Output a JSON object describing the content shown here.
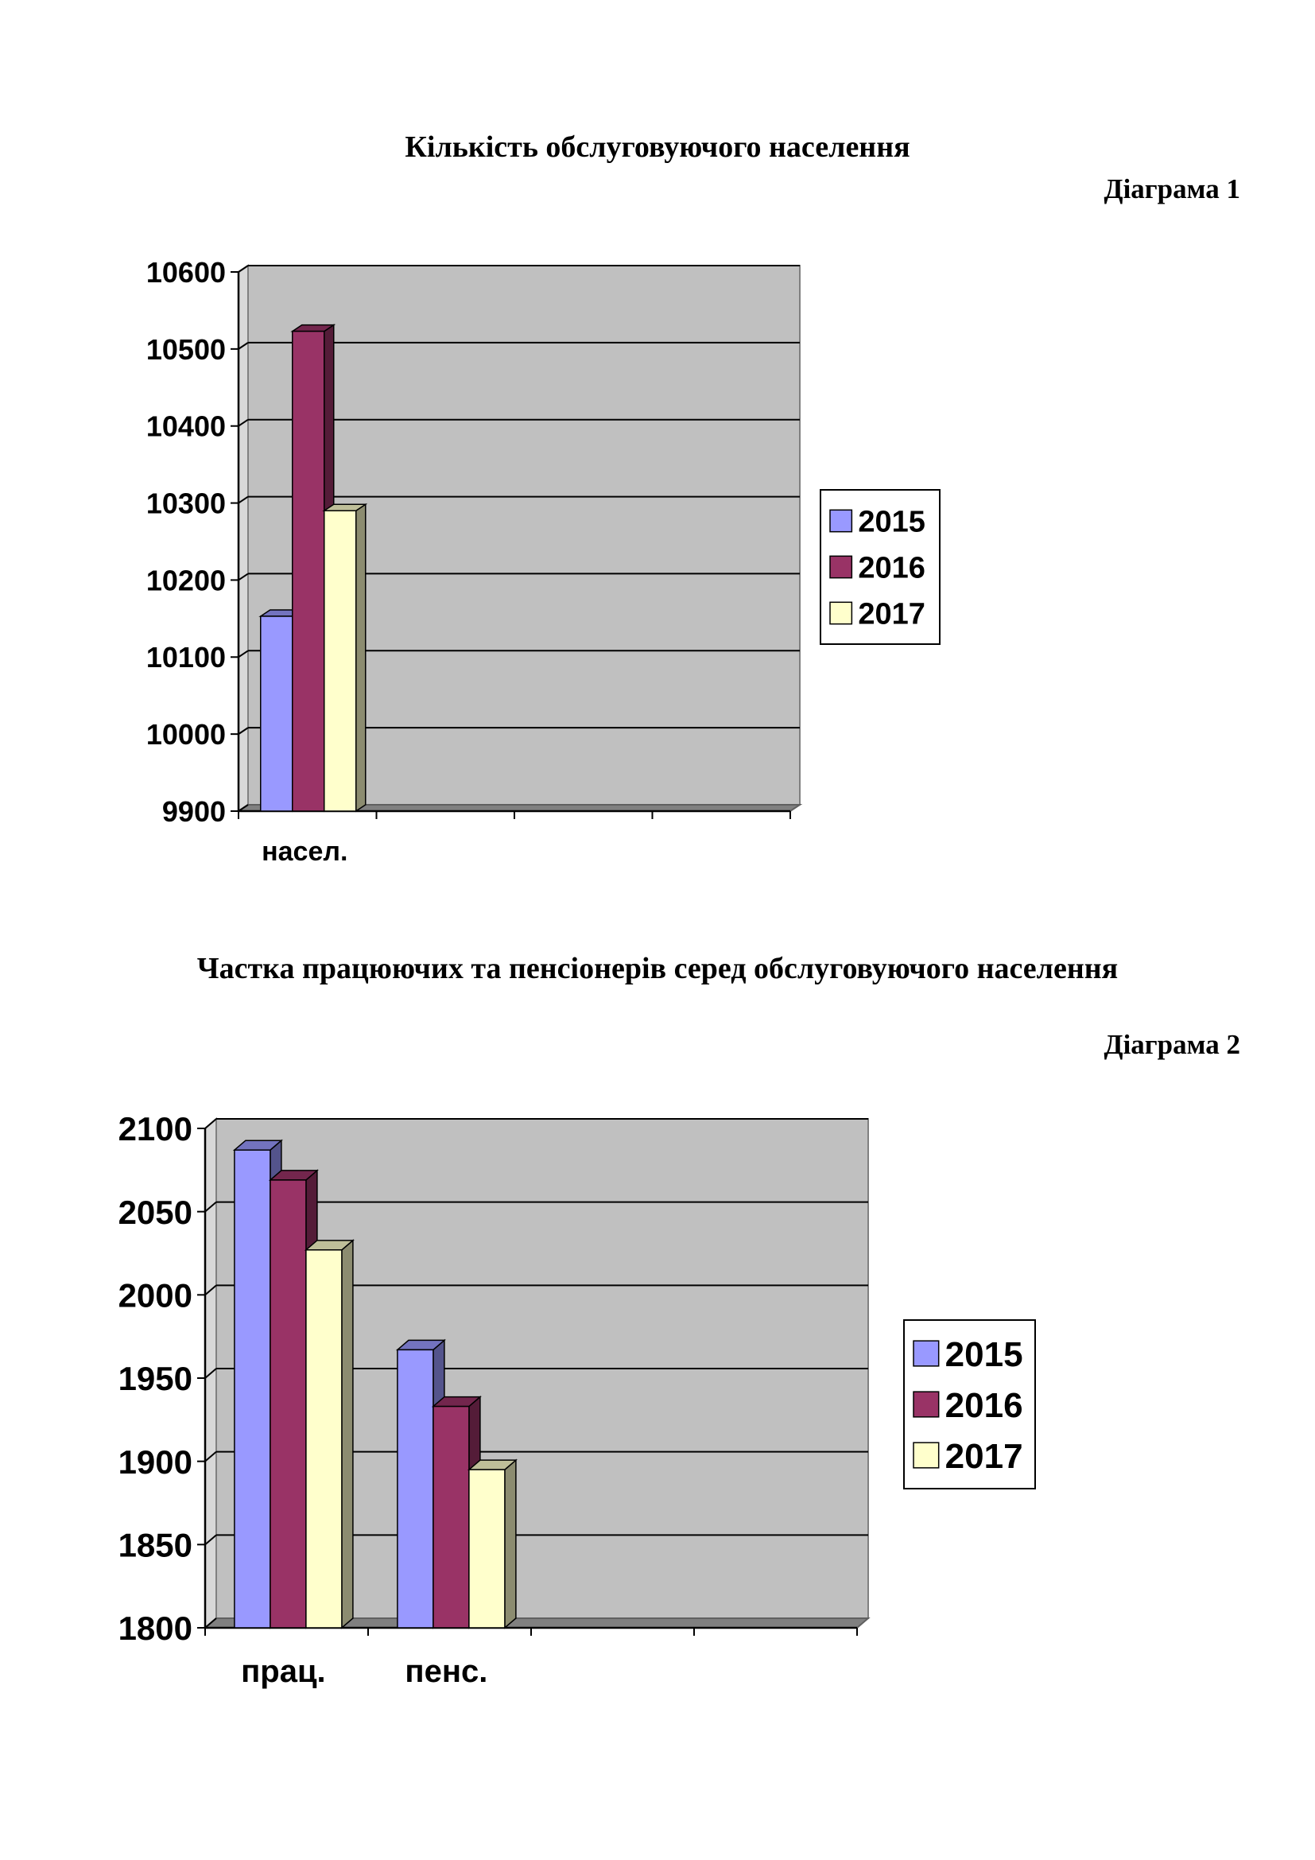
{
  "page": {
    "title1": "Кількість обслуговуючого населення",
    "label1": "Діаграма 1",
    "title2": "Частка працюючих та пенсіонерів серед обслуговуючого населення",
    "label2": "Діаграма 2"
  },
  "colors": {
    "series": [
      "#9999ff",
      "#993366",
      "#ffffcc"
    ],
    "plot_wall": "#c0c0c0"
  },
  "chart_data": [
    {
      "type": "bar",
      "categories": [
        "насел."
      ],
      "series": [
        {
          "name": "2015",
          "values": [
            10153
          ]
        },
        {
          "name": "2016",
          "values": [
            10523
          ]
        },
        {
          "name": "2017",
          "values": [
            10290
          ]
        }
      ],
      "ylim": [
        9900,
        10600
      ],
      "yticks": [
        9900,
        10000,
        10100,
        10200,
        10300,
        10400,
        10500,
        10600
      ],
      "category_slots": 4,
      "grid": true,
      "legend": "right",
      "3d": true
    },
    {
      "type": "bar",
      "categories": [
        "прац.",
        "пенс."
      ],
      "series": [
        {
          "name": "2015",
          "values": [
            2087,
            1967
          ]
        },
        {
          "name": "2016",
          "values": [
            2069,
            1933
          ]
        },
        {
          "name": "2017",
          "values": [
            2027,
            1895
          ]
        }
      ],
      "ylim": [
        1800,
        2100
      ],
      "yticks": [
        1800,
        1850,
        1900,
        1950,
        2000,
        2050,
        2100
      ],
      "category_slots": 4,
      "grid": true,
      "legend": "right",
      "3d": true
    }
  ]
}
